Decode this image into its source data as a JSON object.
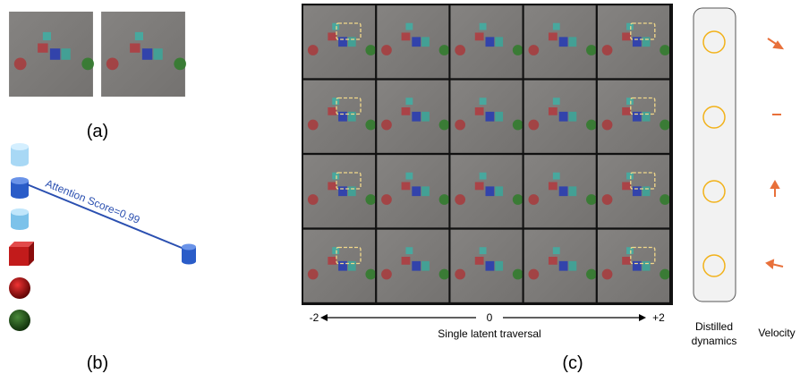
{
  "panels": {
    "a": {
      "label": "(a)"
    },
    "b": {
      "label": "(b)",
      "annotation": "Attention Score=0.99"
    },
    "c": {
      "label": "(c)",
      "axis": {
        "min_label": "-2",
        "mid_label": "0",
        "max_label": "+2",
        "title": "Single latent traversal"
      },
      "dynamics_label": [
        "Distilled",
        "dynamics"
      ],
      "velocity_label": "Velocity"
    }
  }
}
